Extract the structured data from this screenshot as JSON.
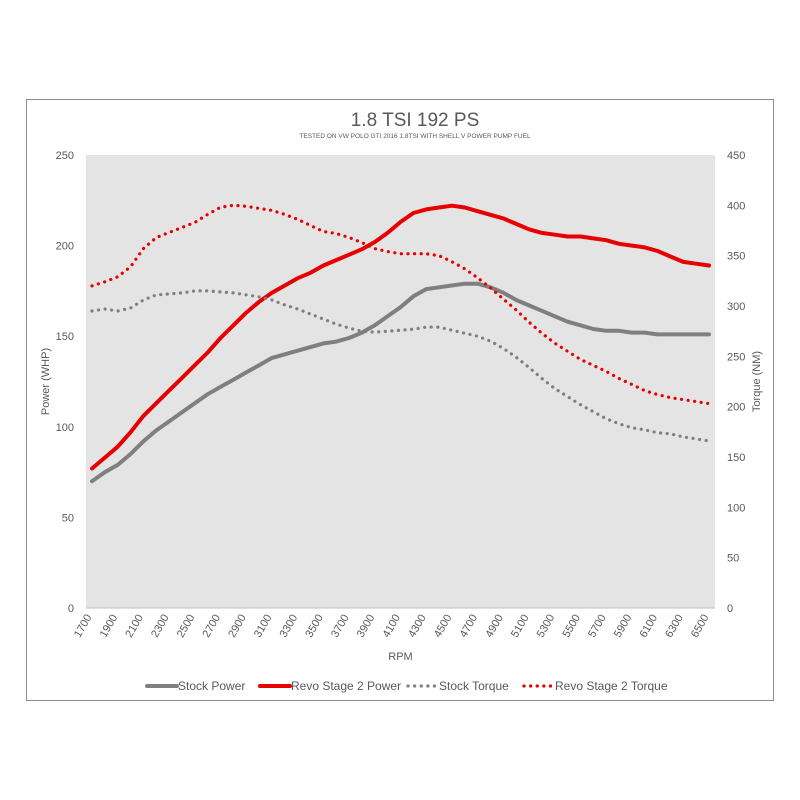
{
  "chart_data": {
    "type": "line",
    "title": "1.8 TSI 192 PS",
    "subtitle": "TESTED ON VW POLO GTI 2016 1.8TSI WITH SHELL V POWER PUMP FUEL",
    "xlabel": "RPM",
    "ylabel_left": "Power (WHP)",
    "ylabel_right": "Torque (NM)",
    "ylim_left": [
      0,
      250
    ],
    "ylim_right": [
      0,
      450
    ],
    "yticks_left": [
      "0",
      "50",
      "100",
      "150",
      "200",
      "250"
    ],
    "yticks_right": [
      "0",
      "50",
      "100",
      "150",
      "200",
      "250",
      "300",
      "350",
      "400",
      "450"
    ],
    "x": [
      1700,
      1800,
      1900,
      2000,
      2100,
      2200,
      2300,
      2400,
      2500,
      2600,
      2700,
      2800,
      2900,
      3000,
      3100,
      3200,
      3300,
      3400,
      3500,
      3600,
      3700,
      3800,
      3900,
      4000,
      4100,
      4200,
      4300,
      4400,
      4500,
      4600,
      4700,
      4800,
      4900,
      5000,
      5100,
      5200,
      5300,
      5400,
      5500,
      5600,
      5700,
      5800,
      5900,
      6000,
      6100,
      6200,
      6300,
      6400,
      6500
    ],
    "xticks": [
      "1700",
      "1900",
      "2100",
      "2300",
      "2500",
      "2700",
      "2900",
      "3100",
      "3300",
      "3500",
      "3700",
      "3900",
      "4100",
      "4300",
      "4500",
      "4700",
      "4900",
      "5100",
      "5300",
      "5500",
      "5700",
      "5900",
      "6100",
      "6300",
      "6500"
    ],
    "grid": false,
    "legend_position": "bottom",
    "series": [
      {
        "name": "Stock Power",
        "axis": "left",
        "style": "solid",
        "color": "#7f7f7f",
        "values": [
          70,
          75,
          79,
          85,
          92,
          98,
          103,
          108,
          113,
          118,
          122,
          126,
          130,
          134,
          138,
          140,
          142,
          144,
          146,
          147,
          149,
          152,
          156,
          161,
          166,
          172,
          176,
          177,
          178,
          179,
          179,
          177,
          174,
          170,
          167,
          164,
          161,
          158,
          156,
          154,
          153,
          153,
          152,
          152,
          151,
          151,
          151,
          151,
          151
        ]
      },
      {
        "name": "Revo Stage 2 Power",
        "axis": "left",
        "style": "solid",
        "color": "#e60000",
        "values": [
          77,
          83,
          89,
          97,
          106,
          113,
          120,
          127,
          134,
          141,
          149,
          156,
          163,
          169,
          174,
          178,
          182,
          185,
          189,
          192,
          195,
          198,
          202,
          207,
          213,
          218,
          220,
          221,
          222,
          221,
          219,
          217,
          215,
          212,
          209,
          207,
          206,
          205,
          205,
          204,
          203,
          201,
          200,
          199,
          197,
          194,
          191,
          190,
          189
        ]
      },
      {
        "name": "Stock Torque",
        "axis": "right",
        "style": "dotted",
        "color": "#7f7f7f",
        "values": [
          295,
          297,
          295,
          298,
          306,
          311,
          312,
          313,
          315,
          315,
          314,
          313,
          311,
          309,
          306,
          301,
          297,
          292,
          287,
          282,
          278,
          275,
          274,
          275,
          276,
          277,
          279,
          279,
          276,
          273,
          270,
          265,
          258,
          249,
          239,
          228,
          218,
          210,
          202,
          195,
          188,
          183,
          179,
          177,
          174,
          173,
          170,
          168,
          166
        ]
      },
      {
        "name": "Revo Stage 2 Torque",
        "axis": "right",
        "style": "dotted",
        "color": "#e60000",
        "values": [
          320,
          324,
          329,
          339,
          357,
          368,
          373,
          378,
          383,
          391,
          398,
          400,
          399,
          397,
          395,
          391,
          386,
          380,
          374,
          372,
          368,
          363,
          357,
          354,
          352,
          352,
          352,
          350,
          344,
          337,
          328,
          318,
          307,
          296,
          284,
          273,
          263,
          255,
          247,
          241,
          235,
          228,
          222,
          216,
          212,
          209,
          207,
          205,
          203
        ]
      }
    ]
  }
}
